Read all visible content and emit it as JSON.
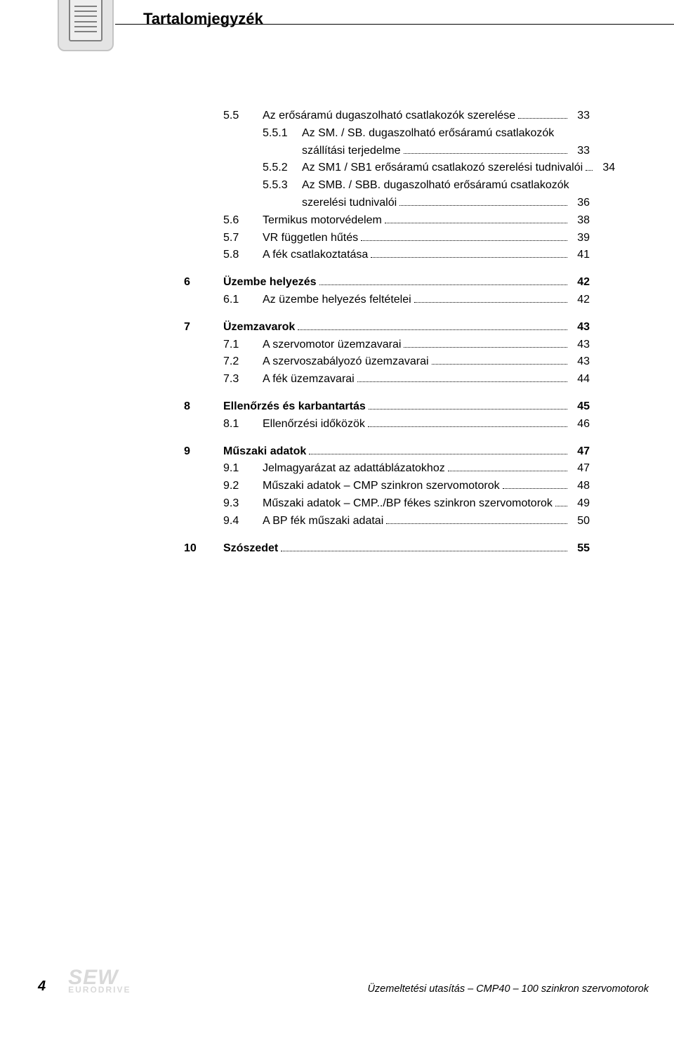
{
  "title": "Tartalomjegyzék",
  "footer": {
    "page_number": "4",
    "logo_top": "SEW",
    "logo_bottom": "EURODRIVE",
    "doc_title": "Üzemeltetési utasítás – CMP40 – 100 szinkron szervomotorok"
  },
  "toc": [
    {
      "type": "sub",
      "num": "5.5",
      "label": "Az erősáramú dugaszolható csatlakozók szerelése",
      "page": "33"
    },
    {
      "type": "subsub",
      "num": "5.5.1",
      "label": "Az SM. / SB. dugaszolható erősáramú csatlakozók",
      "page": ""
    },
    {
      "type": "subsub-cont",
      "num": "",
      "label": "szállítási terjedelme",
      "page": "33"
    },
    {
      "type": "subsub",
      "num": "5.5.2",
      "label": "Az SM1 / SB1 erősáramú csatlakozó szerelési tudnivalói",
      "page": "34"
    },
    {
      "type": "subsub",
      "num": "5.5.3",
      "label": "Az SMB. / SBB. dugaszolható erősáramú csatlakozók",
      "page": ""
    },
    {
      "type": "subsub-cont",
      "num": "",
      "label": "szerelési tudnivalói",
      "page": "36"
    },
    {
      "type": "sub",
      "num": "5.6",
      "label": "Termikus motorvédelem",
      "page": "38"
    },
    {
      "type": "sub",
      "num": "5.7",
      "label": "VR független hűtés",
      "page": "39"
    },
    {
      "type": "sub",
      "num": "5.8",
      "label": "A fék csatlakoztatása",
      "page": "41"
    },
    {
      "type": "gap"
    },
    {
      "type": "top",
      "num": "6",
      "label": "Üzembe helyezés",
      "page": "42",
      "bold": true
    },
    {
      "type": "sub",
      "num": "6.1",
      "label": "Az üzembe helyezés feltételei",
      "page": "42"
    },
    {
      "type": "gap"
    },
    {
      "type": "top",
      "num": "7",
      "label": "Üzemzavarok",
      "page": "43",
      "bold": true
    },
    {
      "type": "sub",
      "num": "7.1",
      "label": "A szervomotor üzemzavarai",
      "page": "43"
    },
    {
      "type": "sub",
      "num": "7.2",
      "label": "A szervoszabályozó üzemzavarai",
      "page": "43"
    },
    {
      "type": "sub",
      "num": "7.3",
      "label": "A fék üzemzavarai",
      "page": "44"
    },
    {
      "type": "gap"
    },
    {
      "type": "top",
      "num": "8",
      "label": "Ellenőrzés és karbantartás",
      "page": "45",
      "bold": true
    },
    {
      "type": "sub",
      "num": "8.1",
      "label": "Ellenőrzési időközök",
      "page": "46"
    },
    {
      "type": "gap"
    },
    {
      "type": "top",
      "num": "9",
      "label": "Műszaki adatok",
      "page": "47",
      "bold": true
    },
    {
      "type": "sub",
      "num": "9.1",
      "label": "Jelmagyarázat az adattáblázatokhoz",
      "page": "47"
    },
    {
      "type": "sub",
      "num": "9.2",
      "label": "Műszaki adatok – CMP szinkron szervomotorok",
      "page": "48"
    },
    {
      "type": "sub",
      "num": "9.3",
      "label": "Műszaki adatok – CMP../BP fékes szinkron szervomotorok",
      "page": "49"
    },
    {
      "type": "sub",
      "num": "9.4",
      "label": "A BP fék műszaki adatai",
      "page": "50"
    },
    {
      "type": "gap"
    },
    {
      "type": "top",
      "num": "10",
      "label": "Szószedet",
      "page": "55",
      "bold": true
    }
  ]
}
